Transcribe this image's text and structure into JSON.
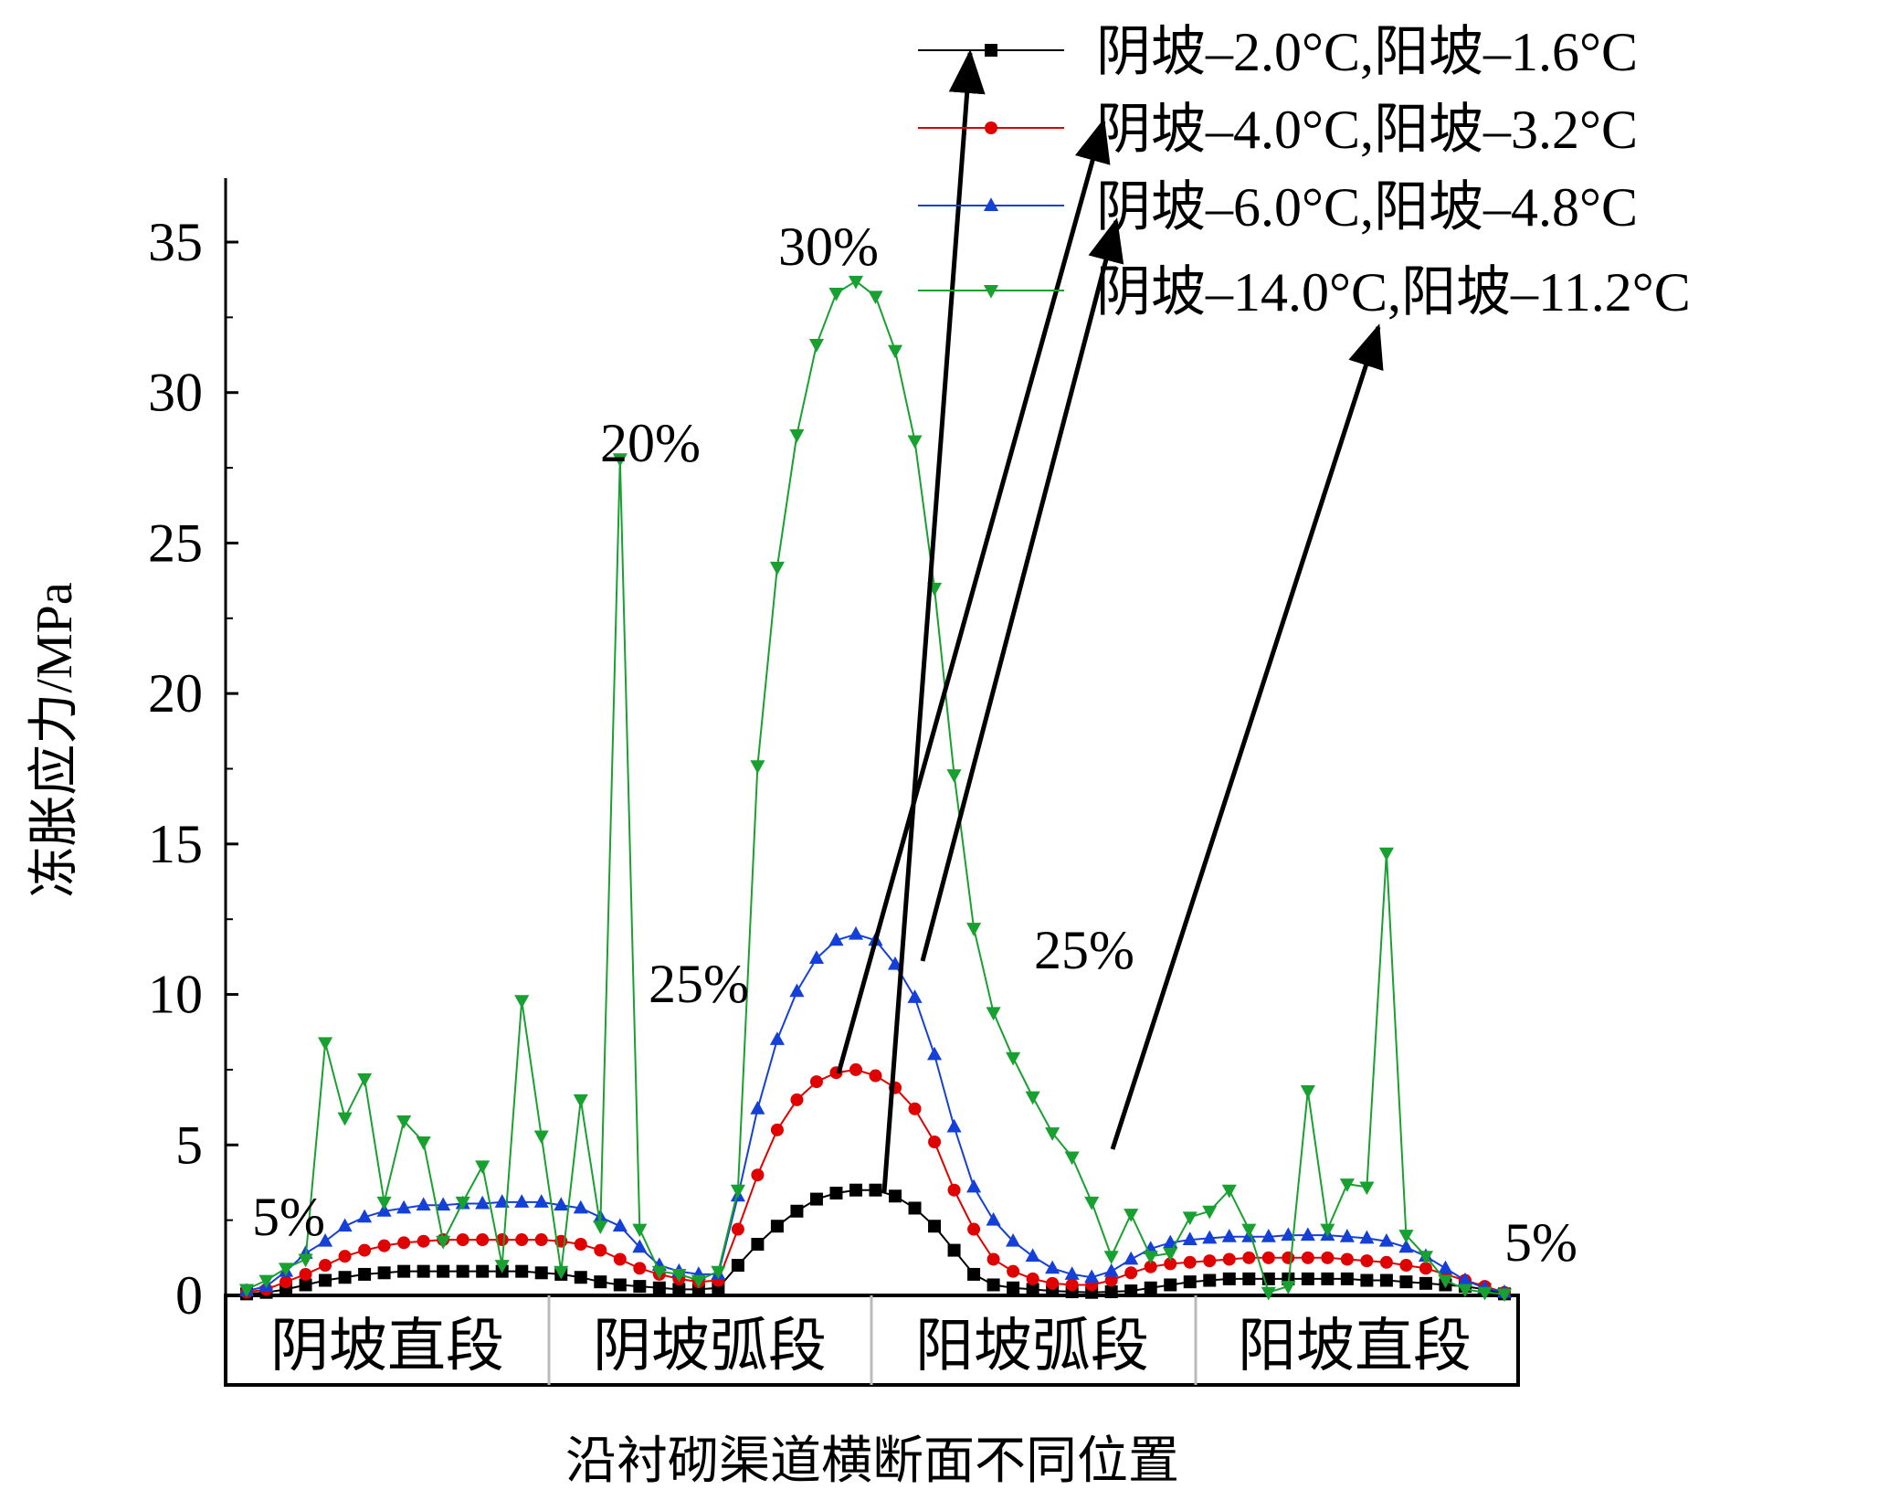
{
  "chart_data": {
    "type": "line",
    "xlabel": "沿衬砌渠道横断面不同位置",
    "ylabel": "冻胀应力/MPa",
    "ylim": [
      0,
      37.5
    ],
    "yticks": [
      0,
      5,
      10,
      15,
      20,
      25,
      30,
      35
    ],
    "x_count": 65,
    "segments": [
      "阴坡直段",
      "阴坡弧段",
      "阳坡弧段",
      "阳坡直段"
    ],
    "legend_position": "top-right",
    "series": [
      {
        "name": "阴坡–2.0°C,阳坡–1.6°C",
        "color": "#000000",
        "marker": "square",
        "values": [
          0.05,
          0.1,
          0.2,
          0.35,
          0.5,
          0.6,
          0.7,
          0.75,
          0.8,
          0.8,
          0.8,
          0.8,
          0.8,
          0.8,
          0.8,
          0.75,
          0.7,
          0.6,
          0.45,
          0.35,
          0.3,
          0.25,
          0.2,
          0.2,
          0.25,
          1.0,
          1.7,
          2.3,
          2.8,
          3.2,
          3.4,
          3.5,
          3.5,
          3.3,
          2.9,
          2.3,
          1.5,
          0.7,
          0.35,
          0.25,
          0.2,
          0.15,
          0.12,
          0.1,
          0.12,
          0.15,
          0.25,
          0.35,
          0.45,
          0.5,
          0.55,
          0.55,
          0.55,
          0.55,
          0.55,
          0.55,
          0.55,
          0.5,
          0.5,
          0.45,
          0.4,
          0.35,
          0.3,
          0.2,
          0.05
        ]
      },
      {
        "name": "阴坡–4.0°C,阳坡–3.2°C",
        "color": "#e00000",
        "marker": "circle",
        "values": [
          0.1,
          0.2,
          0.45,
          0.7,
          1.0,
          1.3,
          1.5,
          1.65,
          1.75,
          1.8,
          1.85,
          1.85,
          1.85,
          1.85,
          1.85,
          1.85,
          1.8,
          1.7,
          1.5,
          1.2,
          0.9,
          0.7,
          0.55,
          0.45,
          0.5,
          2.2,
          4.0,
          5.5,
          6.5,
          7.1,
          7.4,
          7.5,
          7.3,
          6.9,
          6.2,
          5.1,
          3.5,
          2.2,
          1.2,
          0.8,
          0.55,
          0.4,
          0.35,
          0.35,
          0.5,
          0.75,
          0.95,
          1.05,
          1.1,
          1.15,
          1.2,
          1.25,
          1.25,
          1.25,
          1.25,
          1.25,
          1.2,
          1.15,
          1.1,
          1.0,
          0.9,
          0.7,
          0.5,
          0.3,
          0.1
        ]
      },
      {
        "name": "阴坡–6.0°C,阳坡–4.8°C",
        "color": "#1540d8",
        "marker": "triangle-up",
        "values": [
          0.15,
          0.3,
          0.8,
          1.4,
          1.8,
          2.3,
          2.6,
          2.8,
          2.9,
          3.0,
          3.0,
          3.05,
          3.05,
          3.1,
          3.1,
          3.1,
          3.0,
          2.9,
          2.6,
          2.3,
          1.6,
          1.0,
          0.8,
          0.7,
          0.7,
          3.3,
          6.2,
          8.5,
          10.1,
          11.2,
          11.8,
          12.0,
          11.8,
          11.0,
          9.9,
          8.0,
          5.6,
          3.6,
          2.5,
          1.8,
          1.3,
          0.9,
          0.7,
          0.6,
          0.8,
          1.2,
          1.55,
          1.75,
          1.85,
          1.9,
          1.95,
          1.95,
          1.95,
          2.0,
          2.0,
          2.0,
          1.95,
          1.9,
          1.8,
          1.6,
          1.3,
          0.9,
          0.5,
          0.25,
          0.1
        ]
      },
      {
        "name": "阴坡–14.0°C,阳坡–11.2°C",
        "color": "#18a030",
        "marker": "triangle-down",
        "values": [
          0.2,
          0.5,
          0.9,
          1.2,
          8.4,
          5.9,
          7.2,
          3.1,
          5.8,
          5.1,
          1.8,
          3.1,
          4.3,
          1.0,
          9.8,
          5.3,
          0.8,
          6.5,
          2.3,
          27.8,
          2.2,
          0.8,
          0.7,
          0.5,
          0.8,
          3.5,
          17.6,
          24.2,
          28.6,
          31.6,
          33.3,
          33.7,
          33.2,
          31.4,
          28.4,
          23.5,
          17.3,
          12.2,
          9.4,
          7.9,
          6.6,
          5.4,
          4.6,
          3.1,
          1.3,
          2.7,
          1.3,
          1.4,
          2.6,
          2.8,
          3.5,
          2.2,
          0.1,
          0.3,
          6.8,
          2.2,
          3.7,
          3.6,
          14.7,
          2.0,
          1.3,
          0.5,
          0.2,
          0.1,
          0.05
        ]
      }
    ],
    "annotations": [
      {
        "text": "5%"
      },
      {
        "text": "20%"
      },
      {
        "text": "30%"
      },
      {
        "text": "25%"
      },
      {
        "text": "25%"
      },
      {
        "text": "5%"
      }
    ]
  }
}
